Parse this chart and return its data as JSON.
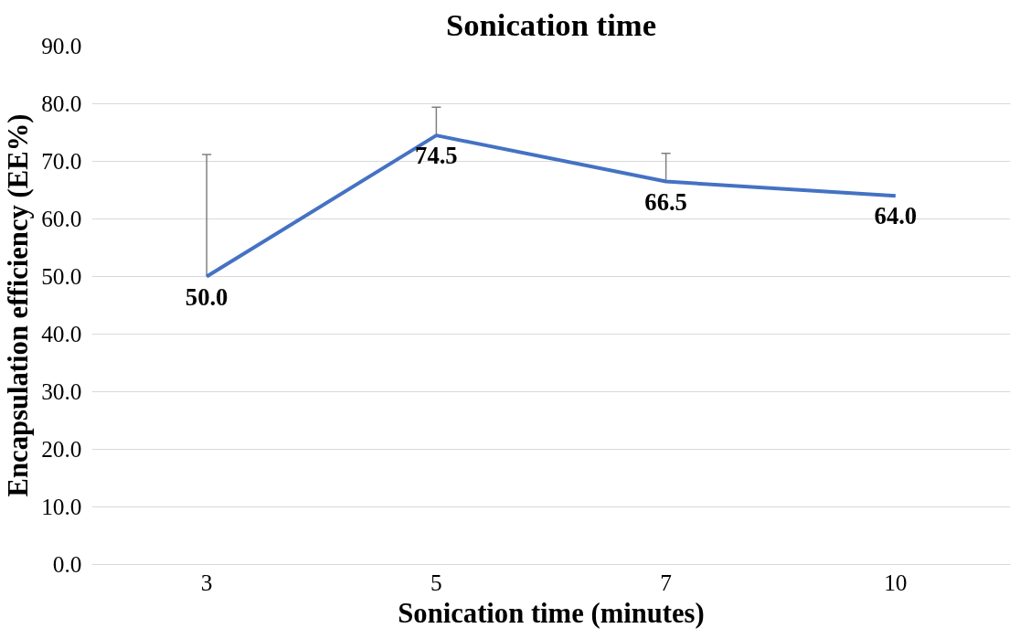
{
  "chart_data": {
    "type": "line",
    "title": "Sonication time",
    "xlabel": "Sonication time (minutes)",
    "ylabel": "Encapsulation efficiency (EE%)",
    "categories": [
      "3",
      "5",
      "7",
      "10"
    ],
    "series": [
      {
        "color": "#4472c4",
        "values": [
          50.0,
          74.5,
          66.5,
          64.0
        ],
        "errors": [
          [
            50.0,
            71.2
          ],
          [
            74.5,
            79.4
          ],
          [
            66.5,
            71.4
          ],
          null
        ],
        "value_labels": [
          "50.0",
          "74.5",
          "66.5",
          "64.0"
        ]
      }
    ],
    "ylim": [
      0,
      90
    ],
    "yticks": [
      {
        "value": 0,
        "label": "0.0"
      },
      {
        "value": 10,
        "label": "10.0"
      },
      {
        "value": 20,
        "label": "20.0"
      },
      {
        "value": 30,
        "label": "30.0"
      },
      {
        "value": 40,
        "label": "40.0"
      },
      {
        "value": 50,
        "label": "50.0"
      },
      {
        "value": 60,
        "label": "60.0"
      },
      {
        "value": 70,
        "label": "70.0"
      },
      {
        "value": 80,
        "label": "80.0"
      },
      {
        "value": 90,
        "label": "90.0"
      }
    ],
    "grid": "y",
    "marker": "none",
    "line_style": "solid"
  }
}
